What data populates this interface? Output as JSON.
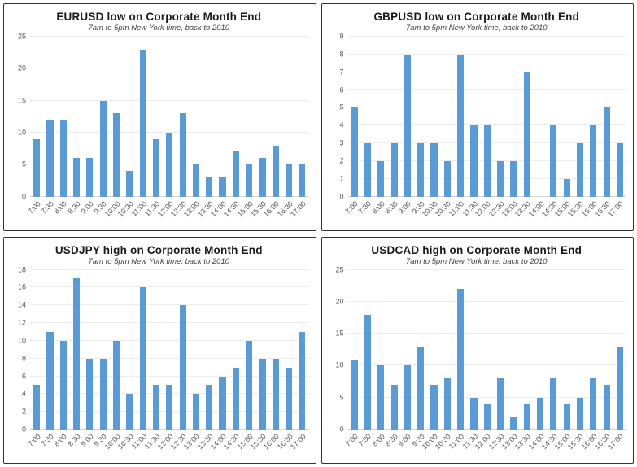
{
  "accent_color": "#5b9bd5",
  "grid_color": "#ececec",
  "chart_data": [
    {
      "type": "bar",
      "title": "EURUSD low on Corporate Month End",
      "subtitle": "7am to 5pm New York time, back to 2010",
      "categories": [
        "7:00",
        "7:30",
        "8:00",
        "8:30",
        "9:00",
        "9:30",
        "10:00",
        "10:30",
        "11:00",
        "11:30",
        "12:00",
        "12:30",
        "13:00",
        "13:30",
        "14:00",
        "14:30",
        "15:00",
        "15:30",
        "16:00",
        "16:30",
        "17:00"
      ],
      "values": [
        9,
        12,
        12,
        6,
        6,
        15,
        13,
        4,
        23,
        9,
        10,
        13,
        5,
        3,
        3,
        7,
        5,
        6,
        8,
        5,
        5
      ],
      "xlabel": "",
      "ylabel": "",
      "ylim": [
        0,
        25
      ],
      "ytick": 5,
      "grid": true,
      "legend": false
    },
    {
      "type": "bar",
      "title": "GBPUSD low on Corporate Month End",
      "subtitle": "7am to 5pm New York time, back to 2010",
      "categories": [
        "7:00",
        "7:30",
        "8:00",
        "8:30",
        "9:00",
        "9:30",
        "10:00",
        "10:30",
        "11:00",
        "11:30",
        "12:00",
        "12:30",
        "13:00",
        "13:30",
        "14:00",
        "14:30",
        "15:00",
        "15:30",
        "16:00",
        "16:30",
        "17:00"
      ],
      "values": [
        5,
        3,
        2,
        3,
        8,
        3,
        3,
        2,
        8,
        4,
        4,
        2,
        2,
        7,
        0,
        4,
        1,
        3,
        4,
        5,
        3
      ],
      "xlabel": "",
      "ylabel": "",
      "ylim": [
        0,
        9
      ],
      "ytick": 1,
      "grid": true,
      "legend": false
    },
    {
      "type": "bar",
      "title": "USDJPY high on Corporate Month End",
      "subtitle": "7am to 5pm New York time, back to 2010",
      "categories": [
        "7:00",
        "7:30",
        "8:00",
        "8:30",
        "9:00",
        "9:30",
        "10:00",
        "10:30",
        "11:00",
        "11:30",
        "12:00",
        "12:30",
        "13:00",
        "13:30",
        "14:00",
        "14:30",
        "15:00",
        "15:30",
        "16:00",
        "16:30",
        "17:00"
      ],
      "values": [
        5,
        11,
        10,
        17,
        8,
        8,
        10,
        4,
        16,
        5,
        5,
        14,
        4,
        5,
        6,
        7,
        10,
        8,
        8,
        7,
        11
      ],
      "xlabel": "",
      "ylabel": "",
      "ylim": [
        0,
        18
      ],
      "ytick": 2,
      "grid": true,
      "legend": false
    },
    {
      "type": "bar",
      "title": "USDCAD high on Corporate Month End",
      "subtitle": "7am to 5pm New York time, back to 2010",
      "categories": [
        "7:00",
        "7:30",
        "8:00",
        "8:30",
        "9:00",
        "9:30",
        "10:00",
        "10:30",
        "11:00",
        "11:30",
        "12:00",
        "12:30",
        "13:00",
        "13:30",
        "14:00",
        "14:30",
        "15:00",
        "15:30",
        "16:00",
        "16:30",
        "17:00"
      ],
      "values": [
        11,
        18,
        10,
        7,
        10,
        13,
        7,
        8,
        22,
        5,
        4,
        8,
        2,
        4,
        5,
        8,
        4,
        5,
        8,
        7,
        13
      ],
      "xlabel": "",
      "ylabel": "",
      "ylim": [
        0,
        25
      ],
      "ytick": 5,
      "grid": true,
      "legend": false
    }
  ]
}
